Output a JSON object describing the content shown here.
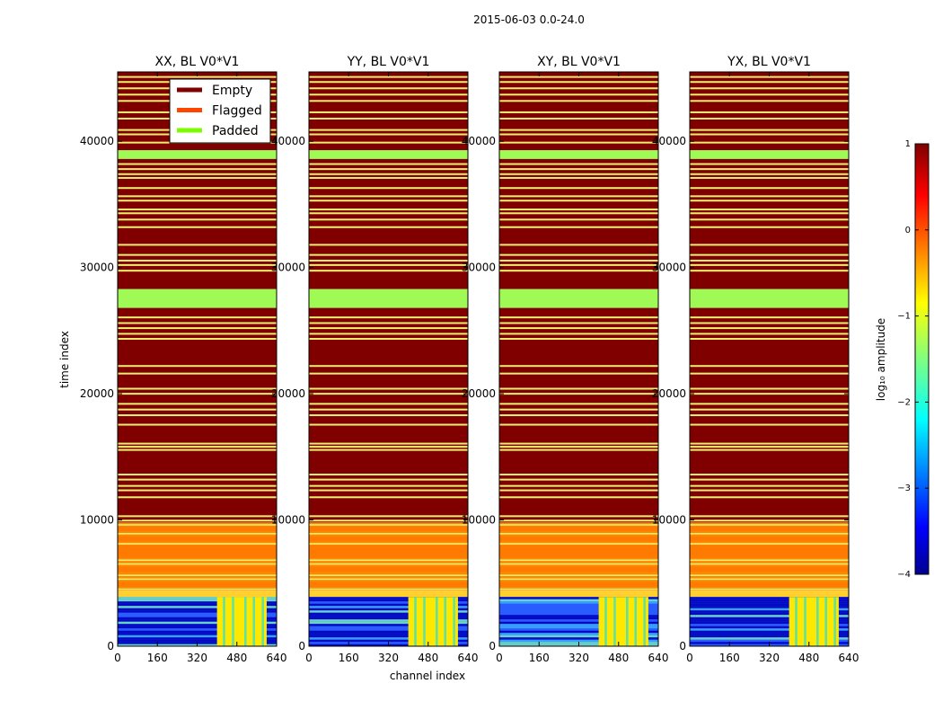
{
  "chart_data": {
    "type": "heatmap",
    "suptitle": "2015-06-03 0.0-24.0",
    "xlabel": "channel index",
    "ylabel": "time index",
    "xlim": [
      0,
      640
    ],
    "ylim": [
      0,
      45500
    ],
    "xticks": [
      "0",
      "160",
      "320",
      "480",
      "640"
    ],
    "yticks": [
      {
        "value": 0,
        "label": "0"
      },
      {
        "value": 10000,
        "label": "10000"
      },
      {
        "value": 20000,
        "label": "20000"
      },
      {
        "value": 30000,
        "label": "30000"
      },
      {
        "value": 40000,
        "label": "40000"
      }
    ],
    "panels": [
      {
        "title": "XX, BL V0*V1"
      },
      {
        "title": "YY, BL V0*V1"
      },
      {
        "title": "XY, BL V0*V1"
      },
      {
        "title": "YX, BL V0*V1"
      }
    ],
    "legend": {
      "position": "top-center of first panel",
      "entries": [
        {
          "label": "Empty",
          "color": "#800000"
        },
        {
          "label": "Flagged",
          "color": "#ff4500"
        },
        {
          "label": "Padded",
          "color": "#7cfc00"
        }
      ]
    },
    "colorbar": {
      "label": "log₁₀ amplitude",
      "range": [
        -4,
        1
      ],
      "ticks": [
        {
          "value": 1,
          "label": "1"
        },
        {
          "value": 0,
          "label": "0"
        },
        {
          "value": -1,
          "label": "−1"
        },
        {
          "value": -2,
          "label": "−2"
        },
        {
          "value": -3,
          "label": "−3"
        },
        {
          "value": -4,
          "label": "−4"
        }
      ]
    },
    "regions": {
      "empty_range": [
        9800,
        45500
      ],
      "padded_blocks": [
        [
          26800,
          28300
        ],
        [
          38600,
          39300
        ]
      ],
      "flagged_range": [
        4400,
        9800
      ],
      "data_range": [
        0,
        3900
      ],
      "data_column_band": [
        400,
        600
      ]
    },
    "colors": {
      "empty": "#800000",
      "padded": "#a0fa55",
      "flagged": "#ff8800",
      "stripe": "#f0f070",
      "data_dark": "#0000bb",
      "data_mid": "#2a5cff",
      "data_band": "#ffe800"
    }
  }
}
